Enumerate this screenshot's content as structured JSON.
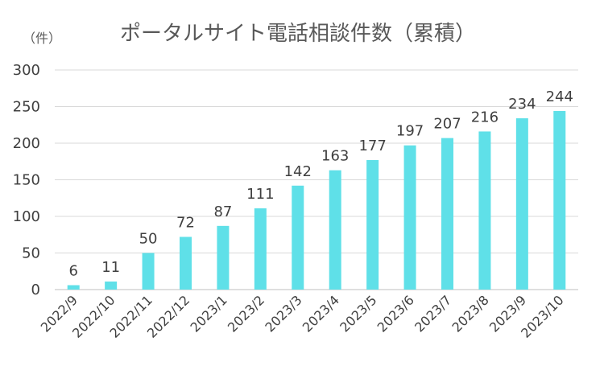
{
  "chart_data": {
    "type": "bar",
    "title": "ポータルサイト電話相談件数（累積）",
    "ylabel": "（件）",
    "xlabel": "",
    "categories": [
      "2022/9",
      "2022/10",
      "2022/11",
      "2022/12",
      "2023/1",
      "2023/2",
      "2023/3",
      "2023/4",
      "2023/5",
      "2023/6",
      "2023/7",
      "2023/8",
      "2023/9",
      "2023/10"
    ],
    "values": [
      6,
      11,
      50,
      72,
      87,
      111,
      142,
      163,
      177,
      197,
      207,
      216,
      234,
      244
    ],
    "ylim": [
      0,
      300
    ],
    "yticks": [
      0,
      50,
      100,
      150,
      200,
      250,
      300
    ],
    "grid": true,
    "legend": "none",
    "colors": {
      "bar": "#5fe0e8",
      "grid": "#d9d9d9",
      "text": "#404040"
    }
  }
}
